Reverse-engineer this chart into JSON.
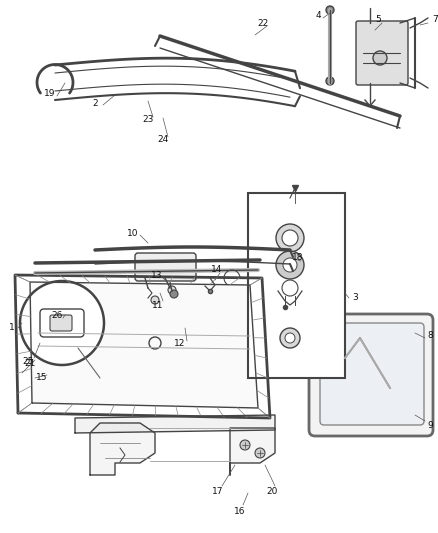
{
  "bg_color": "#ffffff",
  "line_color": "#444444",
  "label_color": "#111111",
  "figsize": [
    4.38,
    5.33
  ],
  "dpi": 100
}
